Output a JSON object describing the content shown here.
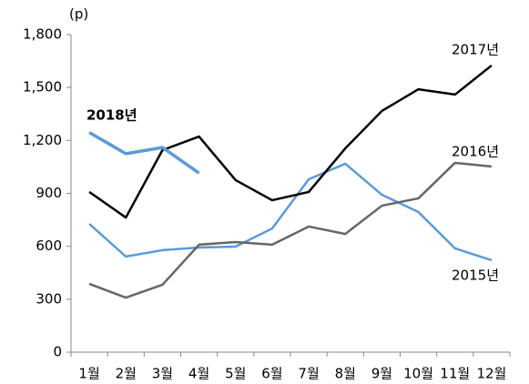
{
  "chart_data": {
    "type": "line",
    "y_unit": "(p)",
    "categories": [
      "1월",
      "2월",
      "3월",
      "4월",
      "5월",
      "6월",
      "7월",
      "8월",
      "9월",
      "10월",
      "11월",
      "12월"
    ],
    "series": [
      {
        "name": "2015년",
        "color": "#5b9bd5",
        "values": [
          727,
          542,
          578,
          593,
          598,
          701,
          980,
          1068,
          892,
          794,
          588,
          521
        ]
      },
      {
        "name": "2016년",
        "color": "#666666",
        "values": [
          387,
          309,
          382,
          609,
          624,
          609,
          712,
          670,
          830,
          872,
          1073,
          1052
        ]
      },
      {
        "name": "2017년",
        "color": "#000000",
        "values": [
          908,
          763,
          1145,
          1222,
          975,
          861,
          908,
          1155,
          1367,
          1490,
          1460,
          1625
        ]
      },
      {
        "name": "2018년",
        "color": "#5b9bd5",
        "values": [
          1245,
          1125,
          1160,
          1015,
          null,
          null,
          null,
          null,
          null,
          null,
          null,
          null
        ]
      }
    ],
    "ylim": [
      0,
      1800
    ],
    "yticks": [
      0,
      300,
      600,
      900,
      {
        "value": 1200,
        "label": "1,200"
      },
      {
        "value": 1500,
        "label": "1,500"
      },
      {
        "value": 1800,
        "label": "1,800"
      }
    ],
    "grid": false
  }
}
